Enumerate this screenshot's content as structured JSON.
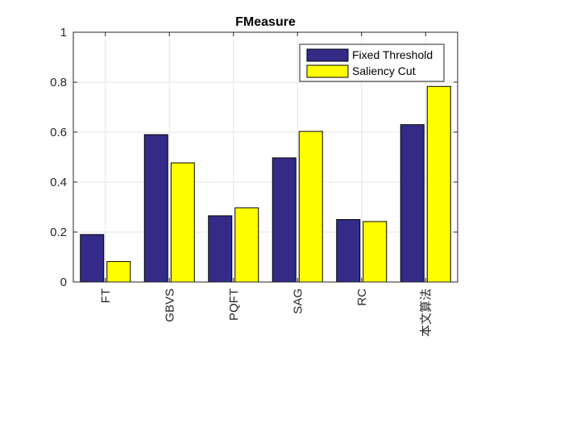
{
  "chart_data": {
    "type": "bar",
    "title": "FMeasure",
    "xlabel": "",
    "ylabel": "",
    "categories": [
      "FT",
      "GBVS",
      "PQFT",
      "SAG",
      "RC",
      "本文算法"
    ],
    "series": [
      {
        "name": "Fixed Threshold",
        "color": "#332b87",
        "values": [
          0.19,
          0.59,
          0.265,
          0.497,
          0.25,
          0.63
        ]
      },
      {
        "name": "Saliency Cut",
        "color": "#ffff00",
        "values": [
          0.082,
          0.477,
          0.297,
          0.603,
          0.242,
          0.783
        ]
      }
    ],
    "ylim": [
      0,
      1
    ],
    "yticks": [
      "0",
      "0.2",
      "0.4",
      "0.6",
      "0.8",
      "1"
    ],
    "grid": true,
    "legend_position": "top-right"
  }
}
